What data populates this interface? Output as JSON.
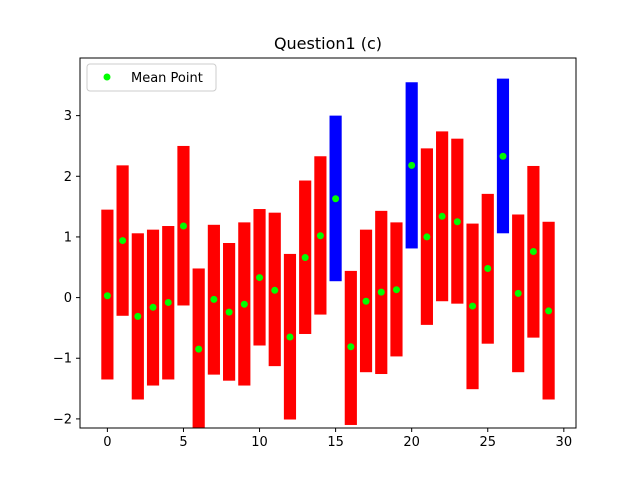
{
  "chart_data": {
    "type": "bar",
    "title": "Question1 (c)",
    "xlabel": "",
    "ylabel": "",
    "xlim": [
      -1.8,
      30.8
    ],
    "ylim": [
      -2.15,
      3.95
    ],
    "xticks": [
      0,
      5,
      10,
      15,
      20,
      25,
      30
    ],
    "yticks": [
      -2,
      -1,
      0,
      1,
      2,
      3
    ],
    "grid": false,
    "legend": {
      "position": "upper left",
      "entries": [
        "Mean Point"
      ]
    },
    "bar_width": 0.8,
    "colors": {
      "default": "#ff0000",
      "highlight": "#0000ff",
      "mean": "#00ff00"
    },
    "bars": [
      {
        "x": 0,
        "low": -1.35,
        "high": 1.45,
        "mean": 0.03,
        "color": "red"
      },
      {
        "x": 1,
        "low": -0.3,
        "high": 2.18,
        "mean": 0.94,
        "color": "red"
      },
      {
        "x": 2,
        "low": -1.68,
        "high": 1.06,
        "mean": -0.31,
        "color": "red"
      },
      {
        "x": 3,
        "low": -1.45,
        "high": 1.12,
        "mean": -0.16,
        "color": "red"
      },
      {
        "x": 4,
        "low": -1.35,
        "high": 1.18,
        "mean": -0.08,
        "color": "red"
      },
      {
        "x": 5,
        "low": -0.13,
        "high": 2.5,
        "mean": 1.18,
        "color": "red"
      },
      {
        "x": 6,
        "low": -2.2,
        "high": 0.48,
        "mean": -0.85,
        "color": "red"
      },
      {
        "x": 7,
        "low": -1.27,
        "high": 1.2,
        "mean": -0.03,
        "color": "red"
      },
      {
        "x": 8,
        "low": -1.37,
        "high": 0.9,
        "mean": -0.24,
        "color": "red"
      },
      {
        "x": 9,
        "low": -1.45,
        "high": 1.24,
        "mean": -0.11,
        "color": "red"
      },
      {
        "x": 10,
        "low": -0.79,
        "high": 1.46,
        "mean": 0.33,
        "color": "red"
      },
      {
        "x": 11,
        "low": -1.13,
        "high": 1.4,
        "mean": 0.12,
        "color": "red"
      },
      {
        "x": 12,
        "low": -2.01,
        "high": 0.72,
        "mean": -0.65,
        "color": "red"
      },
      {
        "x": 13,
        "low": -0.6,
        "high": 1.93,
        "mean": 0.66,
        "color": "red"
      },
      {
        "x": 14,
        "low": -0.28,
        "high": 2.33,
        "mean": 1.02,
        "color": "red"
      },
      {
        "x": 15,
        "low": 0.27,
        "high": 3.0,
        "mean": 1.63,
        "color": "blue"
      },
      {
        "x": 16,
        "low": -2.1,
        "high": 0.44,
        "mean": -0.81,
        "color": "red"
      },
      {
        "x": 17,
        "low": -1.23,
        "high": 1.12,
        "mean": -0.06,
        "color": "red"
      },
      {
        "x": 18,
        "low": -1.26,
        "high": 1.43,
        "mean": 0.09,
        "color": "red"
      },
      {
        "x": 19,
        "low": -0.97,
        "high": 1.24,
        "mean": 0.13,
        "color": "red"
      },
      {
        "x": 20,
        "low": 0.81,
        "high": 3.55,
        "mean": 2.18,
        "color": "blue"
      },
      {
        "x": 21,
        "low": -0.45,
        "high": 2.46,
        "mean": 1.0,
        "color": "red"
      },
      {
        "x": 22,
        "low": -0.06,
        "high": 2.74,
        "mean": 1.34,
        "color": "red"
      },
      {
        "x": 23,
        "low": -0.1,
        "high": 2.62,
        "mean": 1.25,
        "color": "red"
      },
      {
        "x": 24,
        "low": -1.51,
        "high": 1.22,
        "mean": -0.14,
        "color": "red"
      },
      {
        "x": 25,
        "low": -0.76,
        "high": 1.71,
        "mean": 0.48,
        "color": "red"
      },
      {
        "x": 26,
        "low": 1.06,
        "high": 3.61,
        "mean": 2.33,
        "color": "blue"
      },
      {
        "x": 27,
        "low": -1.23,
        "high": 1.37,
        "mean": 0.07,
        "color": "red"
      },
      {
        "x": 28,
        "low": -0.66,
        "high": 2.17,
        "mean": 0.76,
        "color": "red"
      },
      {
        "x": 29,
        "low": -1.68,
        "high": 1.25,
        "mean": -0.22,
        "color": "red"
      }
    ]
  }
}
